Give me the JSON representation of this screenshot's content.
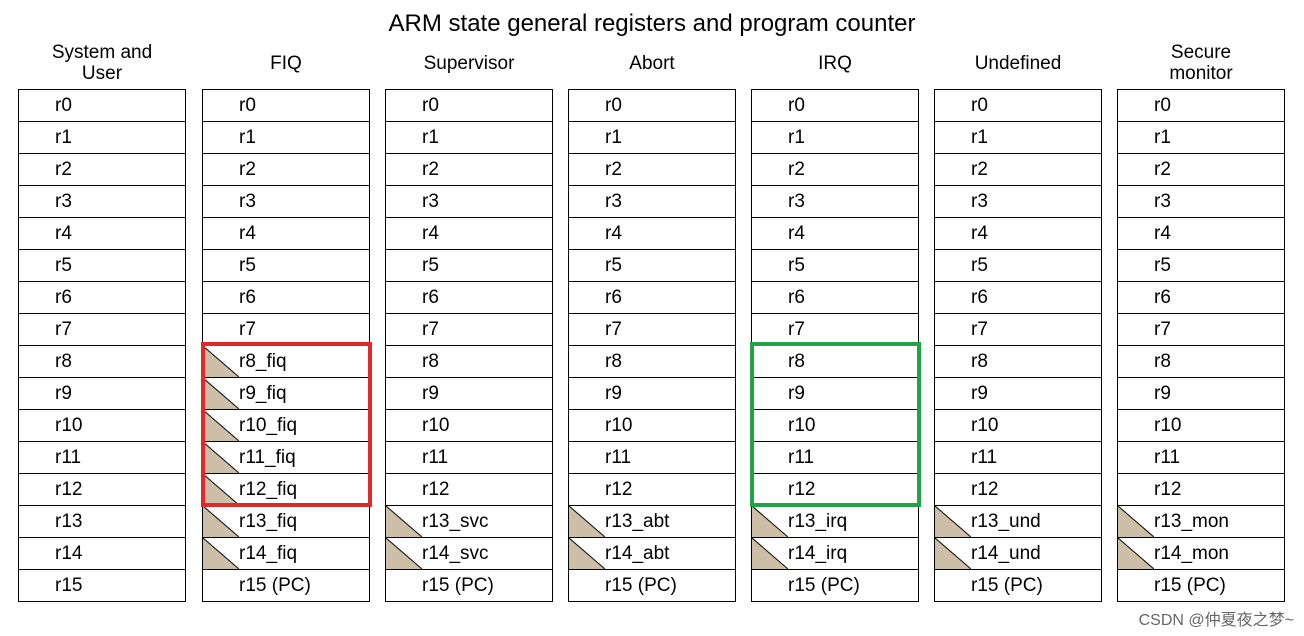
{
  "title": "ARM state general registers and program counter",
  "colors": {
    "banked_fill": "#cdbfa7",
    "highlight_fiq": "#e02a2a",
    "highlight_irq": "#22a446"
  },
  "columns": [
    {
      "name": "System and\nUser",
      "banked_from": null,
      "registers": [
        "r0",
        "r1",
        "r2",
        "r3",
        "r4",
        "r5",
        "r6",
        "r7",
        "r8",
        "r9",
        "r10",
        "r11",
        "r12",
        "r13",
        "r14",
        "r15"
      ]
    },
    {
      "name": "FIQ",
      "banked_from": 8,
      "registers": [
        "r0",
        "r1",
        "r2",
        "r3",
        "r4",
        "r5",
        "r6",
        "r7",
        "r8_fiq",
        "r9_fiq",
        "r10_fiq",
        "r11_fiq",
        "r12_fiq",
        "r13_fiq",
        "r14_fiq",
        "r15 (PC)"
      ]
    },
    {
      "name": "Supervisor",
      "banked_from": 13,
      "registers": [
        "r0",
        "r1",
        "r2",
        "r3",
        "r4",
        "r5",
        "r6",
        "r7",
        "r8",
        "r9",
        "r10",
        "r11",
        "r12",
        "r13_svc",
        "r14_svc",
        "r15 (PC)"
      ]
    },
    {
      "name": "Abort",
      "banked_from": 13,
      "registers": [
        "r0",
        "r1",
        "r2",
        "r3",
        "r4",
        "r5",
        "r6",
        "r7",
        "r8",
        "r9",
        "r10",
        "r11",
        "r12",
        "r13_abt",
        "r14_abt",
        "r15 (PC)"
      ]
    },
    {
      "name": "IRQ",
      "banked_from": 13,
      "registers": [
        "r0",
        "r1",
        "r2",
        "r3",
        "r4",
        "r5",
        "r6",
        "r7",
        "r8",
        "r9",
        "r10",
        "r11",
        "r12",
        "r13_irq",
        "r14_irq",
        "r15 (PC)"
      ]
    },
    {
      "name": "Undefined",
      "banked_from": 13,
      "registers": [
        "r0",
        "r1",
        "r2",
        "r3",
        "r4",
        "r5",
        "r6",
        "r7",
        "r8",
        "r9",
        "r10",
        "r11",
        "r12",
        "r13_und",
        "r14_und",
        "r15 (PC)"
      ]
    },
    {
      "name": "Secure\nmonitor",
      "banked_from": 13,
      "registers": [
        "r0",
        "r1",
        "r2",
        "r3",
        "r4",
        "r5",
        "r6",
        "r7",
        "r8",
        "r9",
        "r10",
        "r11",
        "r12",
        "r13_mon",
        "r14_mon",
        "r15 (PC)"
      ]
    }
  ],
  "highlights": [
    {
      "column": 1,
      "from_row": 8,
      "to_row": 12,
      "color": "red"
    },
    {
      "column": 4,
      "from_row": 8,
      "to_row": 12,
      "color": "green"
    }
  ],
  "watermark": "CSDN @仲夏夜之梦~"
}
